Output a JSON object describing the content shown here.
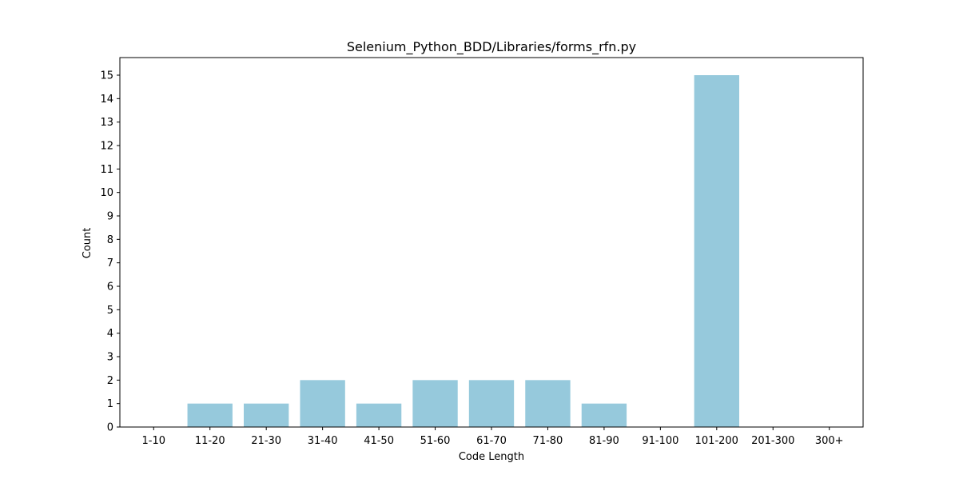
{
  "chart_data": {
    "type": "bar",
    "title": "Selenium_Python_BDD/Libraries/forms_rfn.py",
    "xlabel": "Code Length",
    "ylabel": "Count",
    "categories": [
      "1-10",
      "11-20",
      "21-30",
      "31-40",
      "41-50",
      "51-60",
      "61-70",
      "71-80",
      "81-90",
      "91-100",
      "101-200",
      "201-300",
      "300+"
    ],
    "values": [
      0,
      1,
      1,
      2,
      1,
      2,
      2,
      2,
      1,
      0,
      15,
      0,
      0
    ],
    "ylim": [
      0,
      15.75
    ],
    "yticks": [
      0,
      1,
      2,
      3,
      4,
      5,
      6,
      7,
      8,
      9,
      10,
      11,
      12,
      13,
      14,
      15
    ],
    "bar_color": "#96c9dc",
    "grid": false,
    "legend": "none"
  }
}
